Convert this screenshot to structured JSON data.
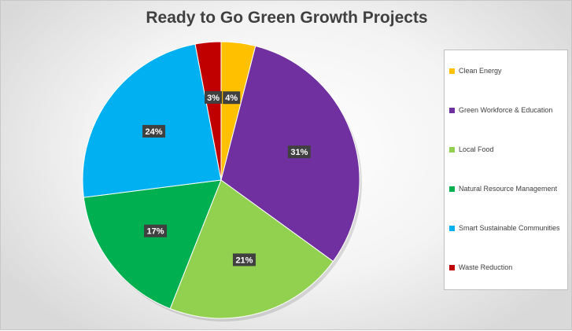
{
  "chart_data": {
    "type": "pie",
    "title": "Ready to Go Green Growth Projects",
    "categories": [
      "Clean Energy",
      "Green Workforce & Education",
      "Local Food",
      "Natural Resource Management",
      "Smart Sustainable Communities",
      "Waste Reduction"
    ],
    "values": [
      4,
      31,
      21,
      17,
      24,
      3
    ],
    "labels": [
      "4%",
      "31%",
      "21%",
      "17%",
      "24%",
      "3%"
    ],
    "colors": [
      "#ffc000",
      "#7030a0",
      "#92d050",
      "#00b050",
      "#00b0f0",
      "#c00000"
    ],
    "legend_position": "right",
    "start_angle": "top, clockwise"
  }
}
